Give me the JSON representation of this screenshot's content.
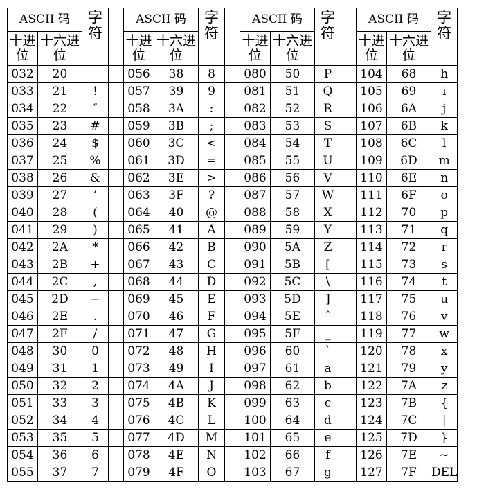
{
  "headers": {
    "ascii_code": "ASCII 码",
    "decimal_line1": "十进",
    "decimal_line2": "位",
    "hex_line1": "十六进",
    "hex_line2": "位",
    "char_line1": "字",
    "char_line2": "符"
  },
  "rows": [
    [
      "032",
      "20",
      "",
      "056",
      "38",
      "8",
      "080",
      "50",
      "P",
      "104",
      "68",
      "h"
    ],
    [
      "033",
      "21",
      "!",
      "057",
      "39",
      "9",
      "081",
      "51",
      "Q",
      "105",
      "69",
      "i"
    ],
    [
      "034",
      "22",
      "″",
      "058",
      "3A",
      ":",
      "082",
      "52",
      "R",
      "106",
      "6A",
      "j"
    ],
    [
      "035",
      "23",
      "#",
      "059",
      "3B",
      ";",
      "083",
      "53",
      "S",
      "107",
      "6B",
      "k"
    ],
    [
      "036",
      "24",
      "$",
      "060",
      "3C",
      "<",
      "084",
      "54",
      "T",
      "108",
      "6C",
      "l"
    ],
    [
      "037",
      "25",
      "%",
      "061",
      "3D",
      "=",
      "085",
      "55",
      "U",
      "109",
      "6D",
      "m"
    ],
    [
      "038",
      "26",
      "&",
      "062",
      "3E",
      ">",
      "086",
      "56",
      "V",
      "110",
      "6E",
      "n"
    ],
    [
      "039",
      "27",
      "’",
      "063",
      "3F",
      "?",
      "087",
      "57",
      "W",
      "111",
      "6F",
      "o"
    ],
    [
      "040",
      "28",
      "(",
      "064",
      "40",
      "@",
      "088",
      "58",
      "X",
      "112",
      "70",
      "p"
    ],
    [
      "041",
      "29",
      ")",
      "065",
      "41",
      "A",
      "089",
      "59",
      "Y",
      "113",
      "71",
      "q"
    ],
    [
      "042",
      "2A",
      "*",
      "066",
      "42",
      "B",
      "090",
      "5A",
      "Z",
      "114",
      "72",
      "r"
    ],
    [
      "043",
      "2B",
      "+",
      "067",
      "43",
      "C",
      "091",
      "5B",
      "[",
      "115",
      "73",
      "s"
    ],
    [
      "044",
      "2C",
      ",",
      "068",
      "44",
      "D",
      "092",
      "5C",
      "\\",
      "116",
      "74",
      "t"
    ],
    [
      "045",
      "2D",
      "−",
      "069",
      "45",
      "E",
      "093",
      "5D",
      "]",
      "117",
      "75",
      "u"
    ],
    [
      "046",
      "2E",
      ".",
      "070",
      "46",
      "F",
      "094",
      "5E",
      "ˆ",
      "118",
      "76",
      "v"
    ],
    [
      "047",
      "2F",
      "/",
      "071",
      "47",
      "G",
      "095",
      "5F",
      "_",
      "119",
      "77",
      "w"
    ],
    [
      "048",
      "30",
      "0",
      "072",
      "48",
      "H",
      "096",
      "60",
      "`",
      "120",
      "78",
      "x"
    ],
    [
      "049",
      "31",
      "1",
      "073",
      "49",
      "I",
      "097",
      "61",
      "a",
      "121",
      "79",
      "y"
    ],
    [
      "050",
      "32",
      "2",
      "074",
      "4A",
      "J",
      "098",
      "62",
      "b",
      "122",
      "7A",
      "z"
    ],
    [
      "051",
      "33",
      "3",
      "075",
      "4B",
      "K",
      "099",
      "63",
      "c",
      "123",
      "7B",
      "{"
    ],
    [
      "052",
      "34",
      "4",
      "076",
      "4C",
      "L",
      "100",
      "64",
      "d",
      "124",
      "7C",
      "|"
    ],
    [
      "053",
      "35",
      "5",
      "077",
      "4D",
      "M",
      "101",
      "65",
      "e",
      "125",
      "7D",
      "}"
    ],
    [
      "054",
      "36",
      "6",
      "078",
      "4E",
      "N",
      "102",
      "66",
      "f",
      "126",
      "7E",
      "~"
    ],
    [
      "055",
      "37",
      "7",
      "079",
      "4F",
      "O",
      "103",
      "67",
      "g",
      "127",
      "7F",
      "DEL"
    ]
  ]
}
